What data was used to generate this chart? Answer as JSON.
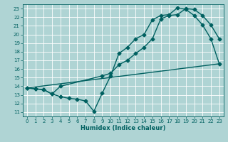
{
  "xlabel": "Humidex (Indice chaleur)",
  "xlim": [
    -0.5,
    23.5
  ],
  "ylim": [
    10.5,
    23.5
  ],
  "xticks": [
    0,
    1,
    2,
    3,
    4,
    5,
    6,
    7,
    8,
    9,
    10,
    11,
    12,
    13,
    14,
    15,
    16,
    17,
    18,
    19,
    20,
    21,
    22,
    23
  ],
  "yticks": [
    11,
    12,
    13,
    14,
    15,
    16,
    17,
    18,
    19,
    20,
    21,
    22,
    23
  ],
  "background_color": "#afd4d4",
  "grid_color": "#c8e8e8",
  "line_color": "#006060",
  "line1_x": [
    0,
    1,
    2,
    3,
    4,
    5,
    6,
    7,
    8,
    9,
    10,
    11,
    12,
    13,
    14,
    15,
    16,
    17,
    18,
    19,
    20,
    21,
    22,
    23
  ],
  "line1_y": [
    13.8,
    13.7,
    13.6,
    13.1,
    12.8,
    12.6,
    12.5,
    12.3,
    11.1,
    13.2,
    15.2,
    17.8,
    18.5,
    19.5,
    20.0,
    21.7,
    22.2,
    22.3,
    23.1,
    22.9,
    22.2,
    21.1,
    19.5,
    16.6
  ],
  "line2_x": [
    0,
    1,
    2,
    3,
    4,
    9,
    10,
    11,
    12,
    13,
    14,
    15,
    16,
    17,
    18,
    19,
    20,
    21,
    22,
    23
  ],
  "line2_y": [
    13.8,
    13.7,
    13.6,
    13.1,
    14.0,
    15.2,
    15.5,
    16.5,
    17.0,
    17.8,
    18.5,
    19.5,
    21.8,
    22.2,
    22.3,
    23.0,
    22.9,
    22.2,
    21.1,
    19.5
  ],
  "line3_x": [
    0,
    23
  ],
  "line3_y": [
    13.8,
    16.6
  ],
  "marker_size": 2.5,
  "line_width": 1.0
}
